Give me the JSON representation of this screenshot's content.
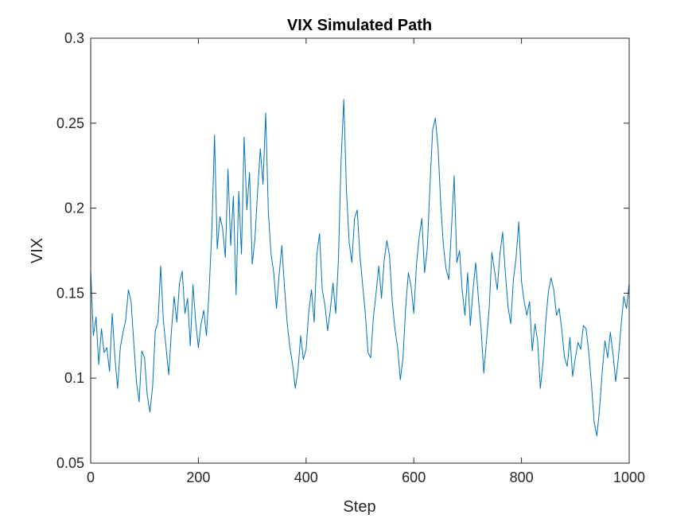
{
  "chart_data": {
    "type": "line",
    "title": "VIX Simulated Path",
    "xlabel": "Step",
    "ylabel": "VIX",
    "xlim": [
      0,
      1000
    ],
    "ylim": [
      0.05,
      0.3
    ],
    "x_ticks": [
      0,
      200,
      400,
      600,
      800,
      1000
    ],
    "x_tick_labels": [
      "0",
      "200",
      "400",
      "600",
      "800",
      "1000"
    ],
    "y_ticks": [
      0.05,
      0.1,
      0.15,
      0.2,
      0.25,
      0.3
    ],
    "y_tick_labels": [
      "0.05",
      "0.1",
      "0.15",
      "0.2",
      "0.25",
      "0.3"
    ],
    "grid": false,
    "line_color": "#0072BD",
    "series": [
      {
        "x": [
          0,
          5,
          10,
          15,
          20,
          25,
          30,
          35,
          40,
          45,
          50,
          55,
          60,
          65,
          70,
          75,
          80,
          85,
          90,
          95,
          100,
          105,
          110,
          115,
          120,
          125,
          130,
          135,
          140,
          145,
          150,
          155,
          160,
          165,
          170,
          175,
          180,
          185,
          190,
          195,
          200,
          205,
          210,
          215,
          220,
          225,
          230,
          235,
          240,
          245,
          250,
          255,
          260,
          265,
          270,
          275,
          280,
          285,
          290,
          295,
          300,
          305,
          310,
          315,
          320,
          325,
          330,
          335,
          340,
          345,
          350,
          355,
          360,
          365,
          370,
          375,
          380,
          385,
          390,
          395,
          400,
          405,
          410,
          415,
          420,
          425,
          430,
          435,
          440,
          445,
          450,
          455,
          460,
          465,
          470,
          475,
          480,
          485,
          490,
          495,
          500,
          505,
          510,
          515,
          520,
          525,
          530,
          535,
          540,
          545,
          550,
          555,
          560,
          565,
          570,
          575,
          580,
          585,
          590,
          595,
          600,
          605,
          610,
          615,
          620,
          625,
          630,
          635,
          640,
          645,
          650,
          655,
          660,
          665,
          670,
          675,
          680,
          685,
          690,
          695,
          700,
          705,
          710,
          715,
          720,
          725,
          730,
          735,
          740,
          745,
          750,
          755,
          760,
          765,
          770,
          775,
          780,
          785,
          790,
          795,
          800,
          805,
          810,
          815,
          820,
          825,
          830,
          835,
          840,
          845,
          850,
          855,
          860,
          865,
          870,
          875,
          880,
          885,
          890,
          895,
          900,
          905,
          910,
          915,
          920,
          925,
          930,
          935,
          940,
          945,
          950,
          955,
          960,
          965,
          970,
          975,
          980,
          985,
          990,
          995,
          1000
        ],
        "y": [
          0.164,
          0.125,
          0.136,
          0.108,
          0.129,
          0.115,
          0.118,
          0.104,
          0.138,
          0.112,
          0.094,
          0.118,
          0.127,
          0.134,
          0.152,
          0.145,
          0.121,
          0.098,
          0.086,
          0.116,
          0.112,
          0.09,
          0.08,
          0.095,
          0.128,
          0.133,
          0.166,
          0.134,
          0.118,
          0.102,
          0.128,
          0.148,
          0.133,
          0.156,
          0.163,
          0.138,
          0.147,
          0.119,
          0.155,
          0.133,
          0.118,
          0.132,
          0.14,
          0.125,
          0.152,
          0.187,
          0.243,
          0.176,
          0.195,
          0.188,
          0.171,
          0.223,
          0.178,
          0.207,
          0.149,
          0.21,
          0.173,
          0.242,
          0.199,
          0.221,
          0.167,
          0.182,
          0.21,
          0.235,
          0.214,
          0.256,
          0.197,
          0.173,
          0.162,
          0.141,
          0.161,
          0.178,
          0.153,
          0.132,
          0.118,
          0.108,
          0.094,
          0.105,
          0.125,
          0.111,
          0.117,
          0.139,
          0.152,
          0.133,
          0.173,
          0.185,
          0.152,
          0.143,
          0.128,
          0.14,
          0.156,
          0.138,
          0.169,
          0.228,
          0.264,
          0.21,
          0.18,
          0.168,
          0.194,
          0.199,
          0.172,
          0.155,
          0.138,
          0.115,
          0.112,
          0.136,
          0.15,
          0.166,
          0.147,
          0.169,
          0.181,
          0.172,
          0.145,
          0.129,
          0.118,
          0.099,
          0.112,
          0.142,
          0.162,
          0.154,
          0.138,
          0.167,
          0.183,
          0.194,
          0.162,
          0.176,
          0.213,
          0.246,
          0.253,
          0.236,
          0.203,
          0.178,
          0.164,
          0.158,
          0.188,
          0.219,
          0.168,
          0.175,
          0.151,
          0.137,
          0.162,
          0.131,
          0.152,
          0.168,
          0.147,
          0.129,
          0.103,
          0.122,
          0.141,
          0.174,
          0.163,
          0.152,
          0.173,
          0.186,
          0.162,
          0.142,
          0.132,
          0.158,
          0.171,
          0.192,
          0.157,
          0.145,
          0.137,
          0.145,
          0.116,
          0.132,
          0.122,
          0.094,
          0.109,
          0.133,
          0.151,
          0.159,
          0.152,
          0.137,
          0.141,
          0.128,
          0.112,
          0.107,
          0.124,
          0.101,
          0.112,
          0.121,
          0.117,
          0.131,
          0.129,
          0.115,
          0.096,
          0.074,
          0.066,
          0.082,
          0.104,
          0.122,
          0.112,
          0.127,
          0.114,
          0.098,
          0.112,
          0.131,
          0.148,
          0.141,
          0.156
        ]
      }
    ]
  }
}
